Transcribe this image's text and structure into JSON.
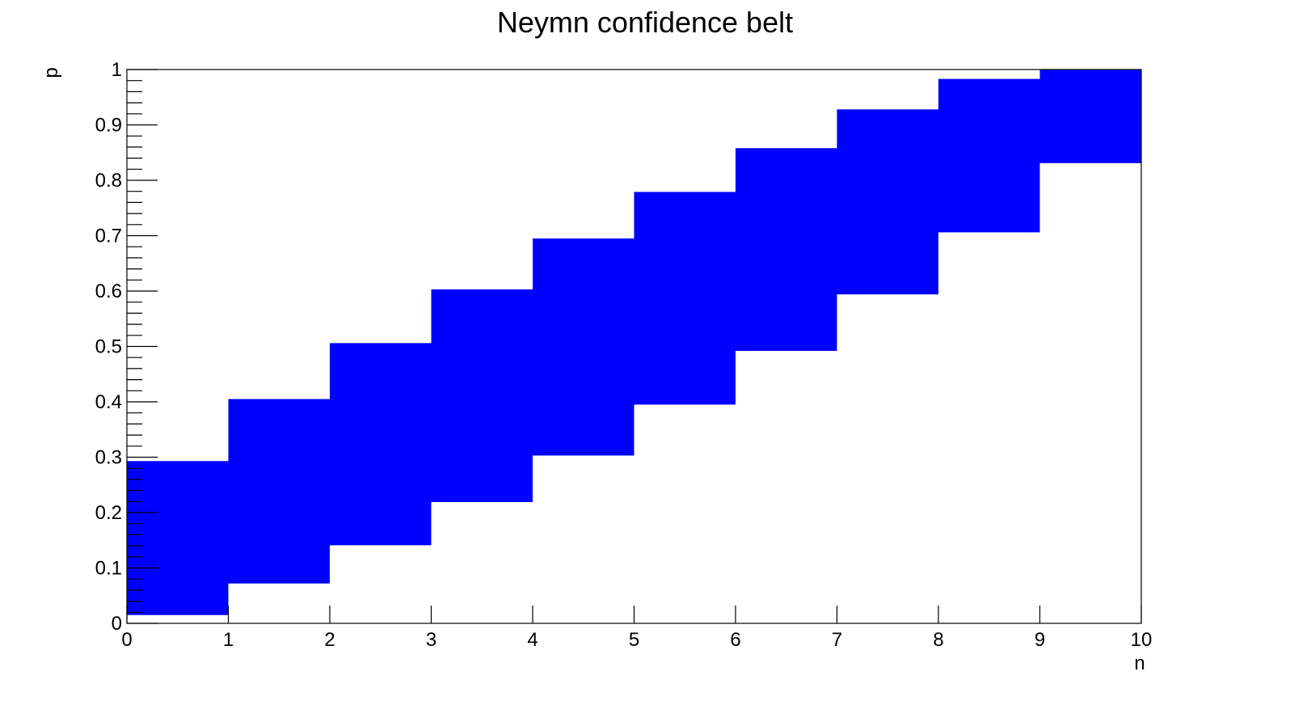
{
  "chart_data": {
    "type": "bar",
    "title": "Neymn confidence belt",
    "xlabel": "n",
    "ylabel": "p",
    "xlim": [
      0,
      10
    ],
    "ylim": [
      0,
      1
    ],
    "grid": false,
    "x_ticks": [
      "0",
      "1",
      "2",
      "3",
      "4",
      "5",
      "6",
      "7",
      "8",
      "9",
      "10"
    ],
    "y_ticks": [
      "0",
      "0.1",
      "0.2",
      "0.3",
      "0.4",
      "0.5",
      "0.6",
      "0.7",
      "0.8",
      "0.9",
      "1"
    ],
    "fill_color": "#0000ff",
    "bins": [
      {
        "x_low": 0,
        "x_high": 1,
        "p_low": 0.015,
        "p_high": 0.293
      },
      {
        "x_low": 1,
        "x_high": 2,
        "p_low": 0.072,
        "p_high": 0.405
      },
      {
        "x_low": 2,
        "x_high": 3,
        "p_low": 0.141,
        "p_high": 0.506
      },
      {
        "x_low": 3,
        "x_high": 4,
        "p_low": 0.219,
        "p_high": 0.603
      },
      {
        "x_low": 4,
        "x_high": 5,
        "p_low": 0.303,
        "p_high": 0.695
      },
      {
        "x_low": 5,
        "x_high": 6,
        "p_low": 0.395,
        "p_high": 0.779
      },
      {
        "x_low": 6,
        "x_high": 7,
        "p_low": 0.492,
        "p_high": 0.858
      },
      {
        "x_low": 7,
        "x_high": 8,
        "p_low": 0.594,
        "p_high": 0.928
      },
      {
        "x_low": 8,
        "x_high": 9,
        "p_low": 0.706,
        "p_high": 0.983
      },
      {
        "x_low": 9,
        "x_high": 10,
        "p_low": 0.831,
        "p_high": 1.0
      }
    ]
  }
}
